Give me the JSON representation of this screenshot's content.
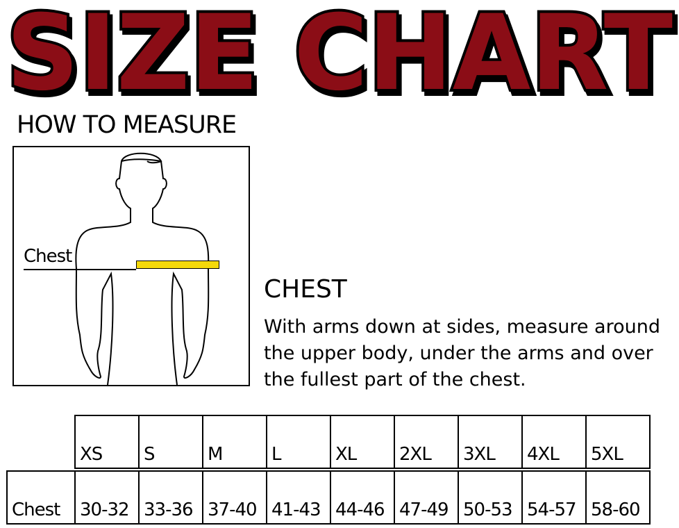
{
  "title": "SIZE CHART",
  "how_to_measure": "HOW TO MEASURE",
  "figure": {
    "label": "Chest",
    "tape_color": "#f5d90a"
  },
  "chest": {
    "heading": "CHEST",
    "instructions": "With arms down at sides, measure around the upper body, under the arms and over the fullest part of the chest."
  },
  "colors": {
    "title_fill": "#8b1114",
    "title_outline": "#000000"
  },
  "table": {
    "sizes": [
      "XS",
      "S",
      "M",
      "L",
      "XL",
      "2XL",
      "3XL",
      "4XL",
      "5XL"
    ],
    "row_label": "Chest",
    "values": [
      "30-32",
      "33-36",
      "37-40",
      "41-43",
      "44-46",
      "47-49",
      "50-53",
      "54-57",
      "58-60"
    ]
  }
}
